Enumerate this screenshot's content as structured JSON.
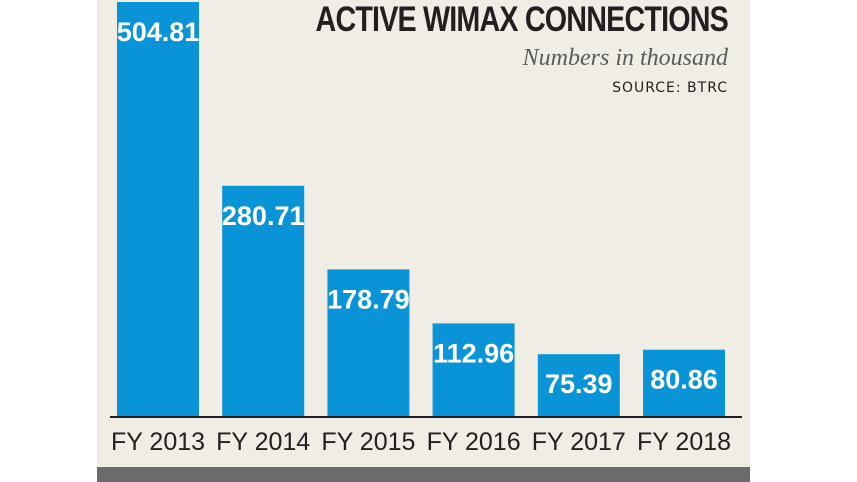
{
  "chart_data": {
    "type": "bar",
    "title": "ACTIVE WIMAX CONNECTIONS",
    "subtitle": "Numbers in thousand",
    "source": "SOURCE: BTRC",
    "categories": [
      "FY 2013",
      "FY 2014",
      "FY 2015",
      "FY 2016",
      "FY 2017",
      "FY 2018"
    ],
    "values": [
      504.81,
      280.71,
      178.79,
      112.96,
      75.39,
      80.86
    ],
    "value_labels": [
      "504.81",
      "280.71",
      "178.79",
      "112.96",
      "75.39",
      "80.86"
    ],
    "xlabel": "",
    "ylabel": "",
    "ylim": [
      0,
      504.81
    ],
    "grid": false,
    "bar_color": "#0a94d8",
    "axis_color": "#231f20"
  }
}
